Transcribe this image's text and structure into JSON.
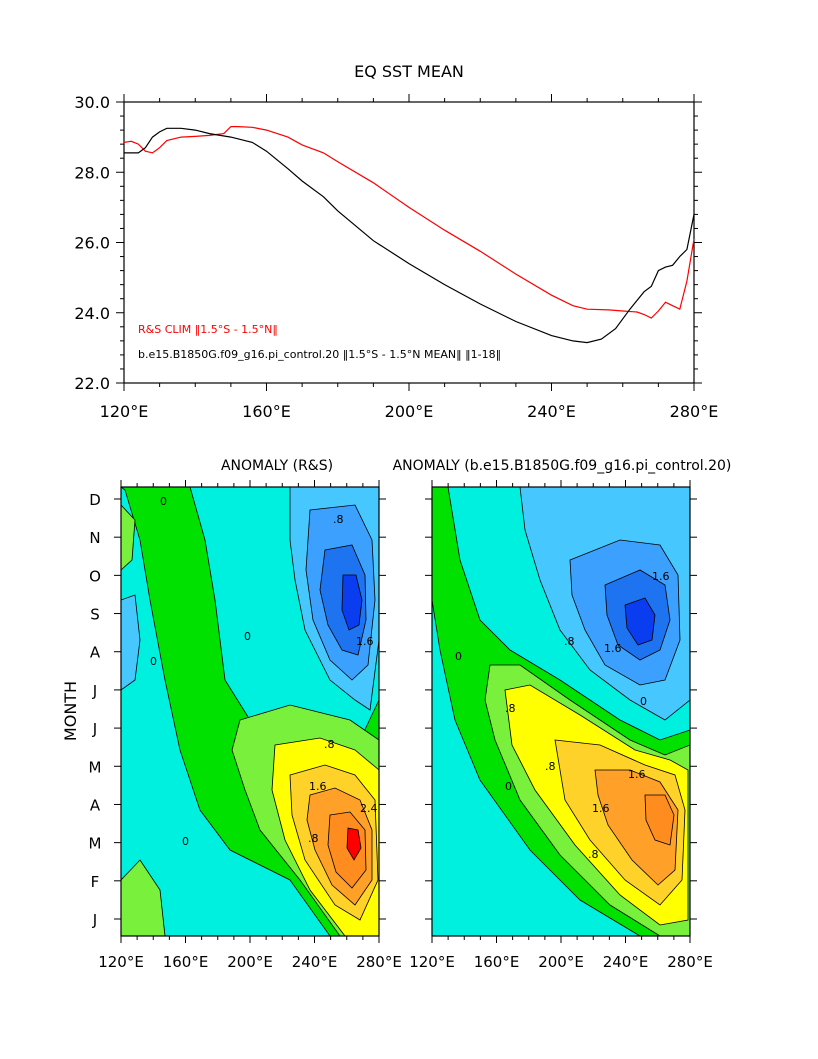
{
  "chart_data": [
    {
      "type": "line",
      "title": "EQ SST MEAN",
      "xlabel": "",
      "ylabel": "",
      "xlim": [
        120,
        280
      ],
      "ylim": [
        22,
        30
      ],
      "x_ticks": [
        120,
        160,
        200,
        240,
        280
      ],
      "x_tick_labels": [
        "120°E",
        "160°E",
        "200°E",
        "240°E",
        "280°E"
      ],
      "y_ticks": [
        22,
        24,
        26,
        28,
        30
      ],
      "y_tick_labels": [
        "22.0",
        "24.0",
        "26.0",
        "28.0",
        "30.0"
      ],
      "legend_placement": "bottom-left",
      "grid": false,
      "series": [
        {
          "name": "R&S CLIM ‖1.5°S - 1.5°N‖",
          "color": "#ff0000",
          "x": [
            120,
            122,
            124,
            126,
            128,
            130,
            132,
            136,
            140,
            144,
            148,
            150,
            152,
            156,
            160,
            166,
            170,
            176,
            180,
            190,
            200,
            210,
            220,
            230,
            240,
            246,
            250,
            256,
            260,
            264,
            266,
            268,
            270,
            272,
            274,
            276,
            278,
            280
          ],
          "y": [
            28.85,
            28.88,
            28.8,
            28.6,
            28.55,
            28.7,
            28.9,
            29.0,
            29.02,
            29.05,
            29.1,
            29.3,
            29.3,
            29.28,
            29.2,
            29.0,
            28.78,
            28.55,
            28.3,
            27.7,
            27.0,
            26.35,
            25.75,
            25.1,
            24.5,
            24.2,
            24.1,
            24.08,
            24.05,
            24.02,
            23.95,
            23.85,
            24.05,
            24.3,
            24.2,
            24.1,
            24.9,
            26.1
          ]
        },
        {
          "name": "b.e15.B1850G.f09_g16.pi_control.20 ‖1.5°S - 1.5°N MEAN‖ ‖1-18‖",
          "color": "#000000",
          "x": [
            120,
            124,
            126,
            128,
            130,
            132,
            136,
            140,
            144,
            150,
            156,
            160,
            166,
            170,
            176,
            180,
            190,
            200,
            210,
            220,
            230,
            240,
            246,
            250,
            254,
            258,
            262,
            266,
            268,
            270,
            272,
            274,
            276,
            278,
            280
          ],
          "y": [
            28.55,
            28.55,
            28.7,
            29.0,
            29.15,
            29.25,
            29.25,
            29.2,
            29.1,
            29.0,
            28.85,
            28.6,
            28.1,
            27.75,
            27.3,
            26.9,
            26.05,
            25.4,
            24.8,
            24.25,
            23.75,
            23.35,
            23.2,
            23.15,
            23.25,
            23.55,
            24.1,
            24.6,
            24.75,
            25.2,
            25.3,
            25.35,
            25.6,
            25.8,
            26.8
          ]
        }
      ]
    },
    {
      "type": "heatmap",
      "title": "ANOMALY (R&S)",
      "xlabel": "",
      "ylabel": "MONTH",
      "xlim": [
        120,
        280
      ],
      "x_ticks": [
        120,
        160,
        200,
        240,
        280
      ],
      "x_tick_labels": [
        "120°E",
        "160°E",
        "200°E",
        "240°E",
        "280°E"
      ],
      "y_tick_labels": [
        "J",
        "F",
        "M",
        "A",
        "M",
        "J",
        "J",
        "A",
        "S",
        "O",
        "N",
        "D"
      ],
      "contour_levels": [
        -2.4,
        -2.0,
        -1.6,
        -1.2,
        -0.8,
        -0.4,
        0,
        0.4,
        0.8,
        1.2,
        1.6,
        2.0,
        2.4
      ],
      "contour_labels": [
        "0",
        ".8",
        "1.6",
        "2.4"
      ],
      "colors": [
        "#0000ff",
        "#0a3cf0",
        "#1e74f0",
        "#3ca0ff",
        "#46c8ff",
        "#00e6ff",
        "#00f0e0",
        "#00e100",
        "#78f03c",
        "#ffff00",
        "#ffd22a",
        "#ffa028",
        "#ff8c1e",
        "#ff0000"
      ]
    },
    {
      "type": "heatmap",
      "title": "ANOMALY (b.e15.B1850G.f09_g16.pi_control.20)",
      "xlabel": "",
      "ylabel": "",
      "xlim": [
        120,
        280
      ],
      "x_ticks": [
        120,
        160,
        200,
        240,
        280
      ],
      "x_tick_labels": [
        "120°E",
        "160°E",
        "200°E",
        "240°E",
        "280°E"
      ],
      "y_tick_labels": [
        "J",
        "F",
        "M",
        "A",
        "M",
        "J",
        "J",
        "A",
        "S",
        "O",
        "N",
        "D"
      ],
      "contour_labels": [
        "0",
        ".8",
        "1.6"
      ]
    }
  ],
  "labels": {
    "bottom_x_last_left": "280°E"
  }
}
